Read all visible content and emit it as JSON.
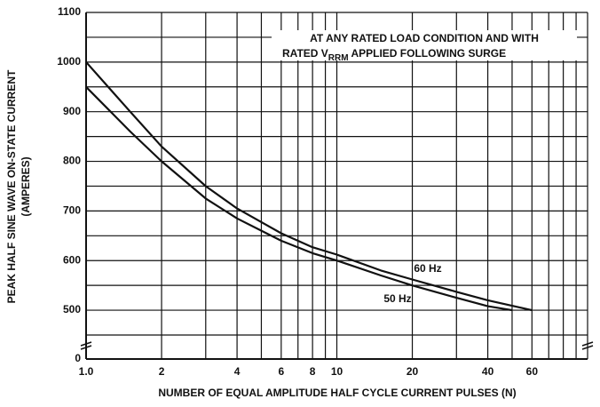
{
  "chart_data": {
    "type": "line",
    "annotation": [
      "AT ANY RATED LOAD CONDITION AND WITH",
      "RATED V",
      "RRM",
      " APPLIED FOLLOWING SURGE"
    ],
    "xlabel": "NUMBER OF EQUAL AMPLITUDE HALF CYCLE CURRENT PULSES (N)",
    "ylabel": [
      "PEAK HALF SINE WAVE ON-STATE CURRENT",
      "(AMPERES)"
    ],
    "xscale": "log",
    "xlim": [
      1,
      100
    ],
    "xticks": [
      {
        "value": 1,
        "label": "1.0"
      },
      2,
      4,
      6,
      8,
      10,
      20,
      40,
      60
    ],
    "xgrid_minor": [
      3,
      5,
      7,
      9,
      30,
      50,
      70,
      80,
      90,
      100
    ],
    "ylim": [
      450,
      1100
    ],
    "y_break": true,
    "yticks": [
      0,
      500,
      600,
      700,
      800,
      900,
      1000,
      1100
    ],
    "ygrid_minor": [
      450,
      550,
      650,
      750,
      850,
      950,
      1050
    ],
    "grid": true,
    "series": [
      {
        "name": "60 Hz",
        "color": "#111111",
        "x": [
          1,
          1.5,
          2,
          3,
          4,
          6,
          8,
          10,
          15,
          20,
          30,
          40,
          60
        ],
        "values": [
          1000,
          900,
          830,
          750,
          705,
          655,
          627,
          612,
          580,
          562,
          537,
          520,
          500
        ]
      },
      {
        "name": "50 Hz",
        "color": "#111111",
        "x": [
          1,
          1.5,
          2,
          3,
          4,
          6,
          8,
          10,
          15,
          20,
          30,
          40,
          50
        ],
        "values": [
          950,
          860,
          800,
          725,
          685,
          640,
          615,
          600,
          570,
          550,
          525,
          508,
          500
        ]
      }
    ]
  }
}
